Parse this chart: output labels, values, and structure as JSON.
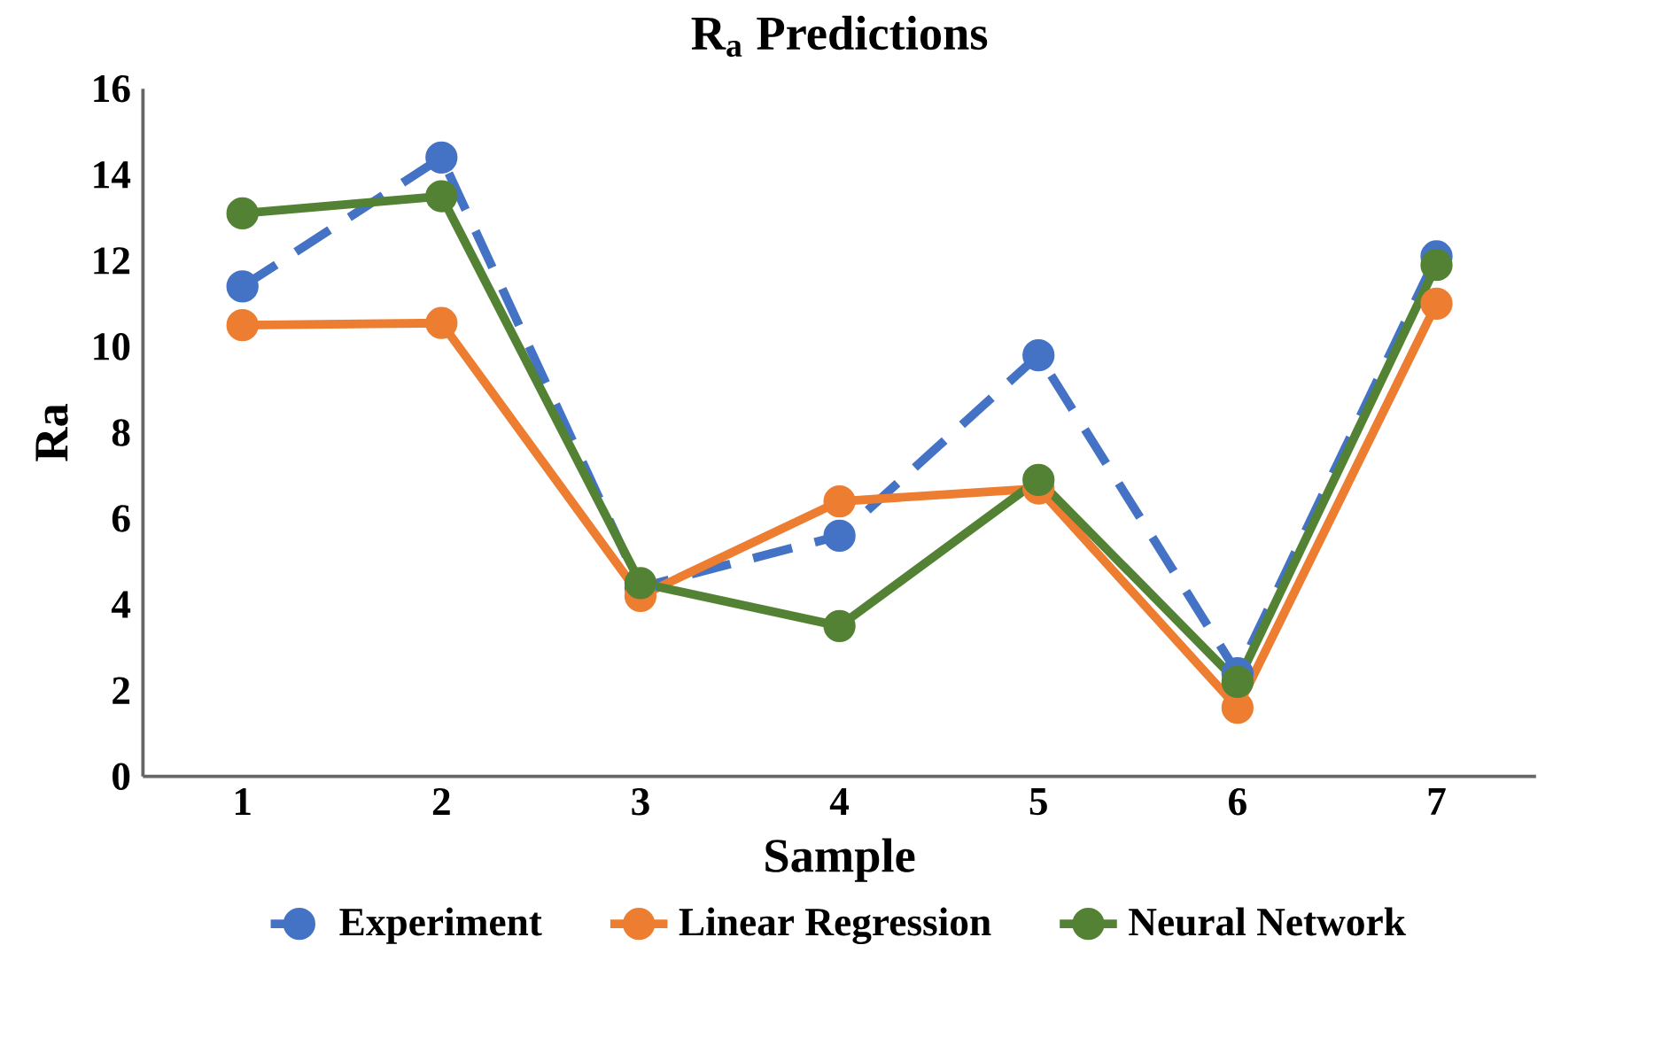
{
  "chart_data": {
    "type": "line",
    "title": "R$_{a}$ Predictions",
    "xlabel": "Sample",
    "ylabel": "Ra",
    "categories": [
      "1",
      "2",
      "3",
      "4",
      "5",
      "6",
      "7"
    ],
    "ylim": [
      0,
      16
    ],
    "yticks": [
      0,
      2,
      4,
      6,
      8,
      10,
      12,
      14,
      16
    ],
    "grid": false,
    "legend": "bottom",
    "marker": "circle",
    "series": [
      {
        "name": "Experiment",
        "color": "#4472c4",
        "line_style": "dashed",
        "values": [
          11.4,
          14.4,
          4.4,
          5.6,
          9.8,
          2.4,
          12.1
        ]
      },
      {
        "name": "Linear Regression",
        "color": "#ed7d31",
        "line_style": "solid",
        "values": [
          10.5,
          10.55,
          4.2,
          6.4,
          6.7,
          1.6,
          11.0
        ]
      },
      {
        "name": "Neural Network",
        "color": "#548235",
        "line_style": "solid",
        "values": [
          13.1,
          13.5,
          4.5,
          3.5,
          6.9,
          2.2,
          11.9
        ]
      }
    ]
  }
}
